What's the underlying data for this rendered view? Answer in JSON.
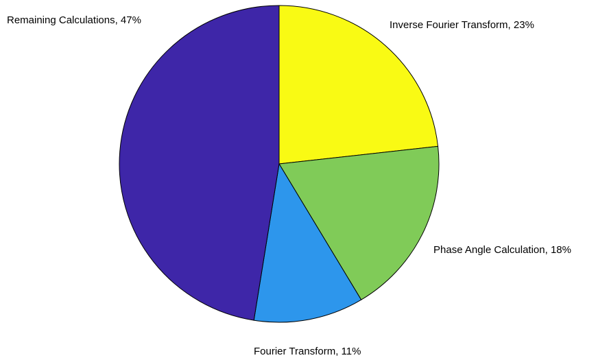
{
  "chart_data": {
    "type": "pie",
    "values": [
      23,
      18,
      11,
      47
    ],
    "value_labels": [
      "Inverse Fourier Transform, 23%",
      "Phase Angle Calculation, 18%",
      "Fourier Transform, 11%",
      "Remaining Calculations, 47%"
    ],
    "colors": [
      "#f9fa14",
      "#80cb58",
      "#2d96ec",
      "#3e26a8"
    ]
  }
}
